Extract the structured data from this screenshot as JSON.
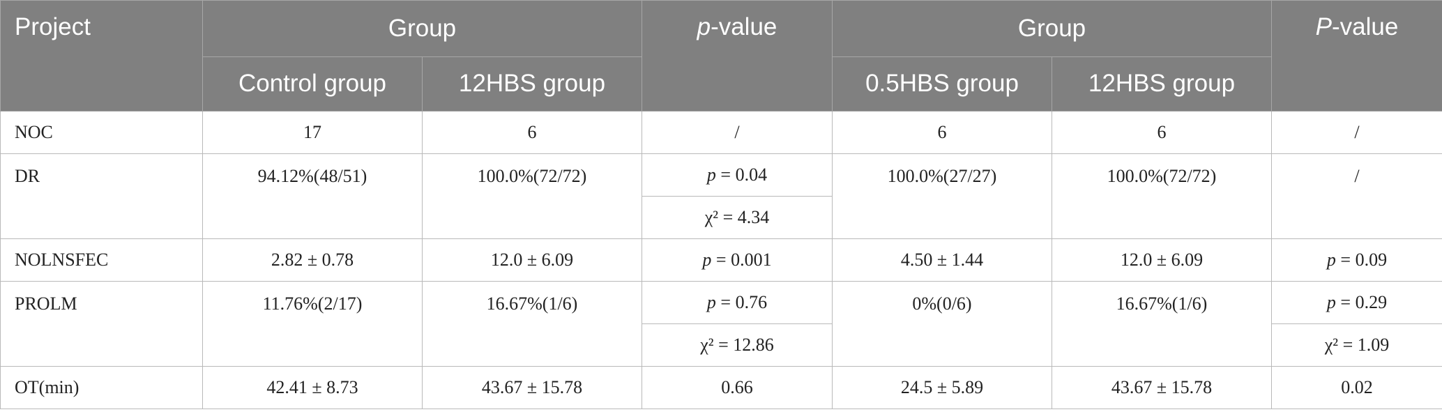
{
  "header": {
    "project": "Project",
    "group_a": "Group",
    "pvalue_a_italic": "p",
    "pvalue_a_rest": "-value",
    "group_b": "Group",
    "pvalue_b_italic": "P",
    "pvalue_b_rest": "-value",
    "sub": {
      "control": "Control group",
      "hbs12_a": "12HBS group",
      "hbs05": "0.5HBS group",
      "hbs12_b": "12HBS group"
    }
  },
  "rows": {
    "noc": {
      "label": "NOC",
      "control": "17",
      "hbs12_a": "6",
      "p_a": "/",
      "hbs05": "6",
      "hbs12_b": "6",
      "p_b": "/"
    },
    "dr": {
      "label": "DR",
      "control": "94.12%(48/51)",
      "hbs12_a": "100.0%(72/72)",
      "p_a_sym": "p",
      "p_a_val": " = 0.04",
      "chi_a": "χ² = 4.34",
      "hbs05": "100.0%(27/27)",
      "hbs12_b": "100.0%(72/72)",
      "p_b": "/"
    },
    "nolnsfec": {
      "label": "NOLNSFEC",
      "control": "2.82 ± 0.78",
      "hbs12_a": "12.0 ± 6.09",
      "p_a_sym": "p",
      "p_a_val": " = 0.001",
      "hbs05": "4.50 ± 1.44",
      "hbs12_b": "12.0 ± 6.09",
      "p_b_sym": "p",
      "p_b_val": " = 0.09"
    },
    "prolm": {
      "label": "PROLM",
      "control": "11.76%(2/17)",
      "hbs12_a": "16.67%(1/6)",
      "p_a_sym": "p",
      "p_a_val": " = 0.76",
      "chi_a": "χ² = 12.86",
      "hbs05": "0%(0/6)",
      "hbs12_b": "16.67%(1/6)",
      "p_b_sym": "p",
      "p_b_val": " = 0.29",
      "chi_b": "χ² = 1.09"
    },
    "ot": {
      "label": "OT(min)",
      "control": "42.41 ± 8.73",
      "hbs12_a": "43.67 ± 15.78",
      "p_a": "0.66",
      "hbs05": "24.5 ± 5.89",
      "hbs12_b": "43.67 ± 15.78",
      "p_b": "0.02"
    }
  }
}
